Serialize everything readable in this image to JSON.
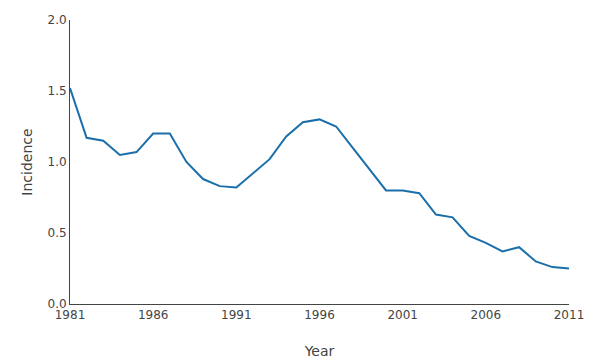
{
  "chart_data": {
    "type": "line",
    "xlabel": "Year",
    "ylabel": "Incidence",
    "x": [
      1981,
      1982,
      1983,
      1984,
      1985,
      1986,
      1987,
      1988,
      1989,
      1990,
      1991,
      1992,
      1993,
      1994,
      1995,
      1996,
      1997,
      1998,
      1999,
      2000,
      2001,
      2002,
      2003,
      2004,
      2005,
      2006,
      2007,
      2008,
      2009,
      2010,
      2011
    ],
    "values": [
      1.52,
      1.17,
      1.15,
      1.05,
      1.07,
      1.2,
      1.2,
      1.0,
      0.88,
      0.83,
      0.82,
      0.92,
      1.02,
      1.18,
      1.28,
      1.3,
      1.25,
      1.1,
      0.95,
      0.8,
      0.8,
      0.78,
      0.63,
      0.61,
      0.48,
      0.43,
      0.37,
      0.4,
      0.3,
      0.26,
      0.25
    ],
    "color": "#1a6faa",
    "xlim": [
      1981,
      2011
    ],
    "xticks": [
      1981,
      1986,
      1991,
      1996,
      2001,
      2006,
      2011
    ],
    "ylim": [
      0.0,
      2.0
    ],
    "yticks": [
      {
        "value": 0.0,
        "label": "0.0"
      },
      0.5,
      {
        "value": 1.0,
        "label": "1.0"
      },
      1.5,
      {
        "value": 2.0,
        "label": "2.0"
      }
    ],
    "grid": false
  }
}
